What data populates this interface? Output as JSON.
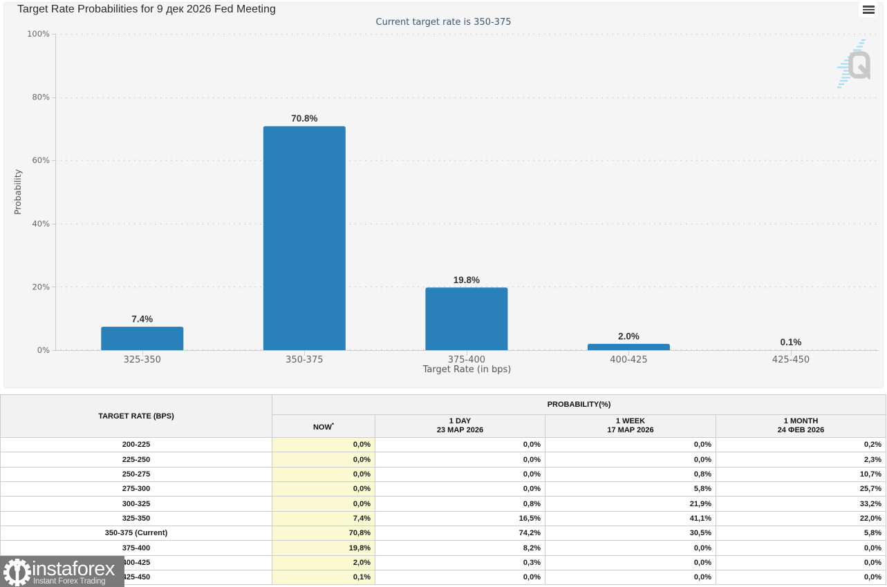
{
  "chart": {
    "title": "Target Rate Probabilities for 9 дек 2026 Fed Meeting",
    "subtitle": "Current target rate is 350-375",
    "menu_icon": "hamburger-menu-icon",
    "watermark_icon": "quikstrike-q-logo"
  },
  "chart_data": {
    "type": "bar",
    "categories": [
      "325-350",
      "350-375",
      "375-400",
      "400-425",
      "425-450"
    ],
    "values": [
      7.4,
      70.8,
      19.8,
      2.0,
      0.1
    ],
    "value_labels": [
      "7.4%",
      "70.8%",
      "19.8%",
      "2.0%",
      "0.1%"
    ],
    "title": "Target Rate Probabilities for 9 дек 2026 Fed Meeting",
    "subtitle": "Current target rate is 350-375",
    "xlabel": "Target Rate (in bps)",
    "ylabel": "Probability",
    "ylim": [
      0,
      100
    ],
    "yticks": [
      0,
      20,
      40,
      60,
      80,
      100
    ],
    "ytick_labels": [
      "0%",
      "20%",
      "40%",
      "60%",
      "80%",
      "100%"
    ],
    "grid": "horizontal-dotted",
    "legend": "none",
    "bar_color": "#2a80b9"
  },
  "table": {
    "col1_header": "TARGET RATE (BPS)",
    "group_header": "PROBABILITY(%)",
    "sub_headers": [
      {
        "label": "NOW",
        "sup": "*",
        "date": ""
      },
      {
        "label": "1 DAY",
        "date": "23 МАР 2026"
      },
      {
        "label": "1 WEEK",
        "date": "17 МАР 2026"
      },
      {
        "label": "1 MONTH",
        "date": "24 ФЕВ 2026"
      }
    ],
    "rows": [
      {
        "rate": "200-225",
        "values": [
          "0,0%",
          "0,0%",
          "0,0%",
          "0,2%"
        ]
      },
      {
        "rate": "225-250",
        "values": [
          "0,0%",
          "0,0%",
          "0,0%",
          "2,3%"
        ]
      },
      {
        "rate": "250-275",
        "values": [
          "0,0%",
          "0,0%",
          "0,8%",
          "10,7%"
        ]
      },
      {
        "rate": "275-300",
        "values": [
          "0,0%",
          "0,0%",
          "5,8%",
          "25,7%"
        ]
      },
      {
        "rate": "300-325",
        "values": [
          "0,0%",
          "0,8%",
          "21,9%",
          "33,2%"
        ]
      },
      {
        "rate": "325-350",
        "values": [
          "7,4%",
          "16,5%",
          "41,1%",
          "22,0%"
        ]
      },
      {
        "rate": "350-375 (Current)",
        "values": [
          "70,8%",
          "74,2%",
          "30,5%",
          "5,8%"
        ]
      },
      {
        "rate": "375-400",
        "values": [
          "19,8%",
          "8,2%",
          "0,0%",
          "0,0%"
        ]
      },
      {
        "rate": "400-425",
        "values": [
          "2,0%",
          "0,3%",
          "0,0%",
          "0,0%"
        ]
      },
      {
        "rate": "425-450",
        "values": [
          "0,1%",
          "0,0%",
          "0,0%",
          "0,0%"
        ]
      }
    ]
  },
  "brand": {
    "name": "instaforex",
    "tagline": "Instant Forex Trading",
    "icon": "gear-logo-icon"
  },
  "colors": {
    "chart_background": "#f5f5f5",
    "bar": "#2a80b9",
    "subtitle": "#3e576f",
    "axis_label": "#666666",
    "grid": "#cfcfcf",
    "table_header_bg": "#f2f2f2",
    "now_column_bg": "#fafad2",
    "table_border": "#cccccc",
    "brand_bg": "#707070"
  }
}
